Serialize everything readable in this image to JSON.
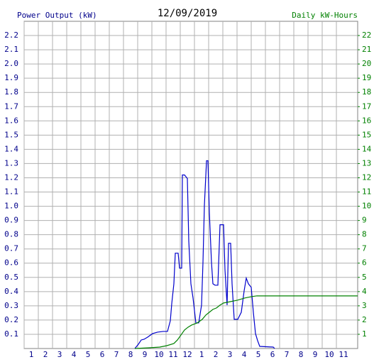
{
  "chart_data": {
    "type": "line",
    "title": "12/09/2019",
    "ylabel": "Power Output (kW)",
    "y2label": "Daily kW-Hours",
    "xlim": [
      0.5,
      24
    ],
    "xticks": [
      1,
      2,
      3,
      4,
      5,
      6,
      7,
      8,
      9,
      10,
      11,
      12,
      {
        "value": 13,
        "label": "1"
      },
      {
        "value": 14,
        "label": "2"
      },
      {
        "value": 15,
        "label": "3"
      },
      {
        "value": 16,
        "label": "4"
      },
      {
        "value": 17,
        "label": "5"
      },
      {
        "value": 18,
        "label": "6"
      },
      {
        "value": 19,
        "label": "7"
      },
      {
        "value": 20,
        "label": "8"
      },
      {
        "value": 21,
        "label": "9"
      },
      {
        "value": 22,
        "label": "10"
      },
      {
        "value": 23,
        "label": "11"
      }
    ],
    "ylim": [
      0,
      2.3
    ],
    "yticks": [
      0.1,
      0.2,
      0.3,
      0.4,
      0.5,
      0.6,
      0.7,
      0.8,
      0.9,
      {
        "value": 1,
        "label": "1.0"
      },
      1.1,
      1.2,
      1.3,
      1.4,
      1.5,
      1.6,
      1.7,
      1.8,
      1.9,
      {
        "value": 2,
        "label": "2.0"
      },
      2.1,
      2.2
    ],
    "y2lim": [
      0,
      23
    ],
    "y2ticks": [
      1,
      2,
      3,
      4,
      5,
      6,
      7,
      8,
      9,
      10,
      11,
      12,
      13,
      14,
      15,
      16,
      17,
      18,
      19,
      20,
      21,
      22
    ],
    "grid": true,
    "series": [
      {
        "name": "Power Output (kW)",
        "color": "#0000cc",
        "x": [
          8.3,
          8.55,
          8.75,
          8.95,
          9.2,
          9.55,
          9.9,
          10.3,
          10.6,
          10.8,
          10.9,
          11.05,
          11.15,
          11.35,
          11.45,
          11.6,
          11.65,
          11.8,
          12.0,
          12.1,
          12.25,
          12.4,
          12.6,
          12.8,
          13.0,
          13.1,
          13.2,
          13.35,
          13.45,
          13.55,
          13.7,
          13.8,
          13.95,
          14.15,
          14.3,
          14.55,
          14.65,
          14.8,
          14.9,
          15.05,
          15.15,
          15.3,
          15.55,
          15.8,
          16.0,
          16.15,
          16.3,
          16.5,
          16.65,
          16.8,
          16.95,
          17.1,
          18.05,
          18.15
        ],
        "values": [
          0,
          0.03,
          0.06,
          0.065,
          0.08,
          0.105,
          0.115,
          0.12,
          0.12,
          0.195,
          0.315,
          0.455,
          0.67,
          0.67,
          0.565,
          0.565,
          1.22,
          1.22,
          1.195,
          0.755,
          0.455,
          0.355,
          0.18,
          0.18,
          0.305,
          0.605,
          1.005,
          1.32,
          1.32,
          0.955,
          0.605,
          0.455,
          0.445,
          0.445,
          0.87,
          0.87,
          0.555,
          0.305,
          0.74,
          0.74,
          0.455,
          0.205,
          0.205,
          0.255,
          0.405,
          0.495,
          0.455,
          0.43,
          0.255,
          0.105,
          0.055,
          0.015,
          0.01,
          0
        ]
      },
      {
        "name": "Daily kW-Hours",
        "color": "#008000",
        "axis": "y2",
        "x": [
          8.3,
          9.3,
          10.05,
          10.55,
          11.05,
          11.3,
          11.55,
          11.8,
          12.05,
          12.3,
          12.7,
          13.05,
          13.3,
          13.55,
          13.8,
          14.05,
          14.3,
          14.55,
          14.8,
          15.05,
          15.55,
          16.05,
          16.55,
          16.9,
          24
        ],
        "values": [
          0,
          0.05,
          0.1,
          0.2,
          0.35,
          0.6,
          0.95,
          1.3,
          1.5,
          1.65,
          1.8,
          2.05,
          2.35,
          2.55,
          2.75,
          2.85,
          3.05,
          3.2,
          3.25,
          3.3,
          3.4,
          3.55,
          3.65,
          3.7,
          3.7
        ]
      }
    ]
  }
}
